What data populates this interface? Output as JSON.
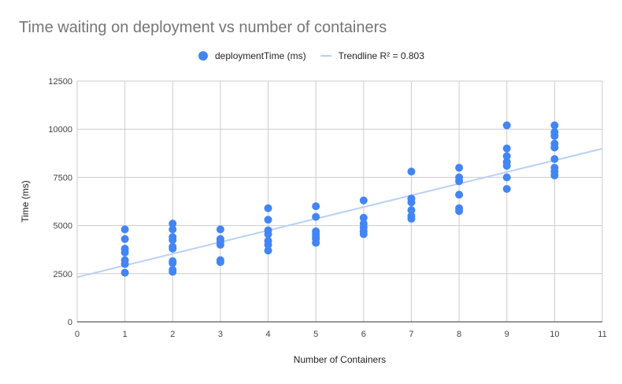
{
  "chart_data": {
    "type": "scatter",
    "title": "Time waiting on deployment vs number of containers",
    "xlabel": "Number of Containers",
    "ylabel": "Time (ms)",
    "xlim": [
      0,
      11
    ],
    "ylim": [
      0,
      12500
    ],
    "x_ticks": [
      "0",
      "1",
      "2",
      "3",
      "4",
      "5",
      "6",
      "7",
      "8",
      "9",
      "10",
      "11"
    ],
    "y_ticks": [
      "0",
      "2500",
      "5000",
      "7500",
      "10000",
      "12500"
    ],
    "grid": true,
    "legend_position": "top",
    "series": [
      {
        "name": "deploymentTime (ms)",
        "color": "#4285f4",
        "points": [
          [
            1,
            4800
          ],
          [
            1,
            4300
          ],
          [
            1,
            3800
          ],
          [
            1,
            3600
          ],
          [
            1,
            3200
          ],
          [
            1,
            3000
          ],
          [
            1,
            2550
          ],
          [
            2,
            5100
          ],
          [
            2,
            4800
          ],
          [
            2,
            4400
          ],
          [
            2,
            4250
          ],
          [
            2,
            3900
          ],
          [
            2,
            3800
          ],
          [
            2,
            3150
          ],
          [
            2,
            3050
          ],
          [
            2,
            2700
          ],
          [
            2,
            2600
          ],
          [
            3,
            4800
          ],
          [
            3,
            4300
          ],
          [
            3,
            4150
          ],
          [
            3,
            4000
          ],
          [
            3,
            3200
          ],
          [
            3,
            3100
          ],
          [
            4,
            5900
          ],
          [
            4,
            5300
          ],
          [
            4,
            4750
          ],
          [
            4,
            4550
          ],
          [
            4,
            4200
          ],
          [
            4,
            4000
          ],
          [
            4,
            3700
          ],
          [
            5,
            6000
          ],
          [
            5,
            5450
          ],
          [
            5,
            4700
          ],
          [
            5,
            4550
          ],
          [
            5,
            4400
          ],
          [
            5,
            4300
          ],
          [
            5,
            4100
          ],
          [
            6,
            6300
          ],
          [
            6,
            5400
          ],
          [
            6,
            5100
          ],
          [
            6,
            4900
          ],
          [
            6,
            4700
          ],
          [
            6,
            4550
          ],
          [
            7,
            7800
          ],
          [
            7,
            6400
          ],
          [
            7,
            6200
          ],
          [
            7,
            5800
          ],
          [
            7,
            5500
          ],
          [
            7,
            5350
          ],
          [
            8,
            8000
          ],
          [
            8,
            7500
          ],
          [
            8,
            7300
          ],
          [
            8,
            6600
          ],
          [
            8,
            5900
          ],
          [
            8,
            5750
          ],
          [
            9,
            10200
          ],
          [
            9,
            9000
          ],
          [
            9,
            8600
          ],
          [
            9,
            8300
          ],
          [
            9,
            8100
          ],
          [
            9,
            7500
          ],
          [
            9,
            6900
          ],
          [
            10,
            10200
          ],
          [
            10,
            9850
          ],
          [
            10,
            9650
          ],
          [
            10,
            9250
          ],
          [
            10,
            9050
          ],
          [
            10,
            8450
          ],
          [
            10,
            8000
          ],
          [
            10,
            7800
          ],
          [
            10,
            7600
          ]
        ]
      },
      {
        "name": "Trendline R² = 0.803",
        "type": "line",
        "color": "#b9d0f5",
        "points": [
          [
            0,
            2320
          ],
          [
            11,
            8990
          ]
        ]
      }
    ]
  }
}
